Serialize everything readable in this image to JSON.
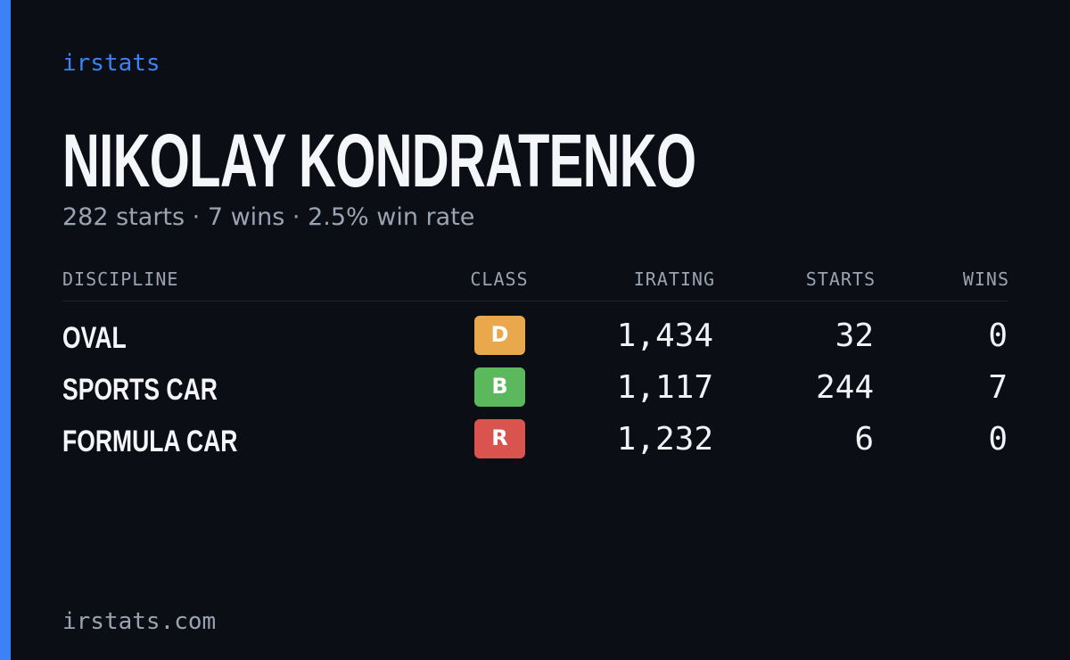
{
  "header": {
    "brand": "irstats",
    "name": "NIKOLAY KONDRATENKO",
    "summary": "282 starts · 7 wins · 2.5% win rate"
  },
  "table": {
    "columns": [
      "DISCIPLINE",
      "CLASS",
      "IRATING",
      "STARTS",
      "WINS"
    ],
    "rows": [
      {
        "discipline": "OVAL",
        "class": "D",
        "class_color": "#e9a84c",
        "irating": "1,434",
        "starts": "32",
        "wins": "0"
      },
      {
        "discipline": "SPORTS CAR",
        "class": "B",
        "class_color": "#5cb85c",
        "irating": "1,117",
        "starts": "244",
        "wins": "7"
      },
      {
        "discipline": "FORMULA CAR",
        "class": "R",
        "class_color": "#d9534f",
        "irating": "1,232",
        "starts": "6",
        "wins": "0"
      }
    ]
  },
  "footer": {
    "site": "irstats.com"
  }
}
